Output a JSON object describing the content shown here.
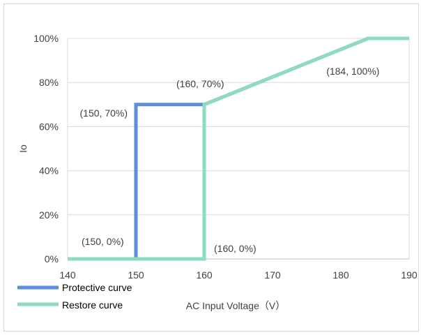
{
  "chart_data": {
    "type": "line",
    "title": "",
    "xlabel": "AC Input Voltage（V）",
    "ylabel": "Io",
    "xlim": [
      140,
      190
    ],
    "ylim": [
      0,
      100
    ],
    "x_ticks": [
      "140",
      "150",
      "160",
      "170",
      "180",
      "190"
    ],
    "y_ticks": [
      "0%",
      "20%",
      "40%",
      "60%",
      "80%",
      "100%"
    ],
    "grid": "horizontal",
    "legend_position": "bottom-left",
    "series": [
      {
        "name": "Protective curve",
        "color": "#5b8fd9",
        "points": [
          [
            140,
            0
          ],
          [
            150,
            0
          ],
          [
            150,
            70
          ],
          [
            160,
            70
          ],
          [
            184,
            100
          ],
          [
            190,
            100
          ]
        ]
      },
      {
        "name": "Restore curve",
        "color": "#8fdcbc",
        "points": [
          [
            140,
            0
          ],
          [
            160,
            0
          ],
          [
            160,
            70
          ],
          [
            184,
            100
          ],
          [
            190,
            100
          ]
        ]
      }
    ],
    "annotations": [
      {
        "text": "(150, 70%)",
        "x": 150,
        "y": 70
      },
      {
        "text": "(160, 70%)",
        "x": 160,
        "y": 70
      },
      {
        "text": "(184, 100%)",
        "x": 184,
        "y": 100
      },
      {
        "text": "(150, 0%)",
        "x": 150,
        "y": 0
      },
      {
        "text": "(160, 0%)",
        "x": 160,
        "y": 0
      }
    ]
  }
}
